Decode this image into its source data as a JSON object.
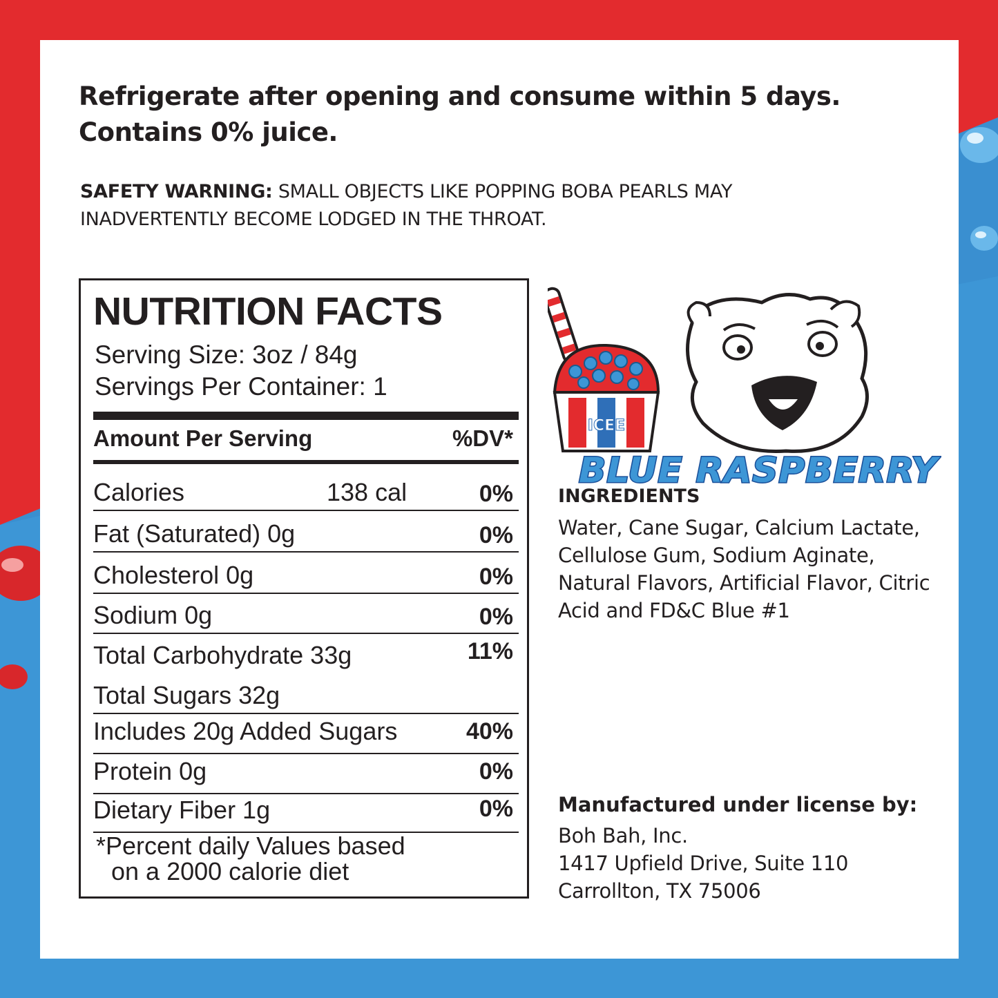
{
  "colors": {
    "red": "#e32b2e",
    "blue": "#3d96d6",
    "text": "#231f20"
  },
  "headline": {
    "line1": "Refrigerate after opening and consume within 5 days.",
    "line2": "Contains 0% juice."
  },
  "warning": {
    "label": "SAFETY WARNING:",
    "text": " SMALL OBJECTS LIKE POPPING BOBA PEARLS MAY INADVERTENTLY BECOME LODGED IN THE THROAT."
  },
  "nutrition": {
    "title": "NUTRITION FACTS",
    "serving_size": "Serving Size: 3oz / 84g",
    "servings_per_container": "Servings Per Container: 1",
    "amount_header": "Amount Per Serving",
    "dv_header": "%DV*",
    "rows": [
      {
        "label": "Calories",
        "value": "138 cal",
        "dv": "0%"
      },
      {
        "label": "Fat (Saturated)  0g",
        "value": "",
        "dv": "0%"
      },
      {
        "label": "Cholesterol  0g",
        "value": "",
        "dv": "0%"
      },
      {
        "label": "Sodium  0g",
        "value": "",
        "dv": "0%"
      },
      {
        "label": "Total Carbohydrate  33g",
        "value": "",
        "dv": "11%"
      },
      {
        "label": "Total Sugars  32g",
        "value": "",
        "dv": ""
      },
      {
        "label": "Includes 20g Added Sugars",
        "value": "",
        "dv": "40%"
      },
      {
        "label": "Protein  0g",
        "value": "",
        "dv": "0%"
      },
      {
        "label": "Dietary Fiber  1g",
        "value": "",
        "dv": "0%"
      }
    ],
    "footnote_line1": "*Percent daily Values based",
    "footnote_line2": "on a 2000 calorie diet"
  },
  "logo": {
    "flavor": "BLUE RASPBERRY",
    "cup_text": "ICEE"
  },
  "ingredients": {
    "heading": "INGREDIENTS",
    "text": "Water, Cane Sugar, Calcium Lactate, Cellulose Gum, Sodium Aginate, Natural Flavors, Artificial Flavor, Citric Acid and FD&C Blue #1"
  },
  "manufacturer": {
    "heading": "Manufactured under license by:",
    "name": "Boh Bah, Inc.",
    "address1": "1417 Upfield Drive, Suite 110",
    "address2": "Carrollton, TX 75006"
  }
}
